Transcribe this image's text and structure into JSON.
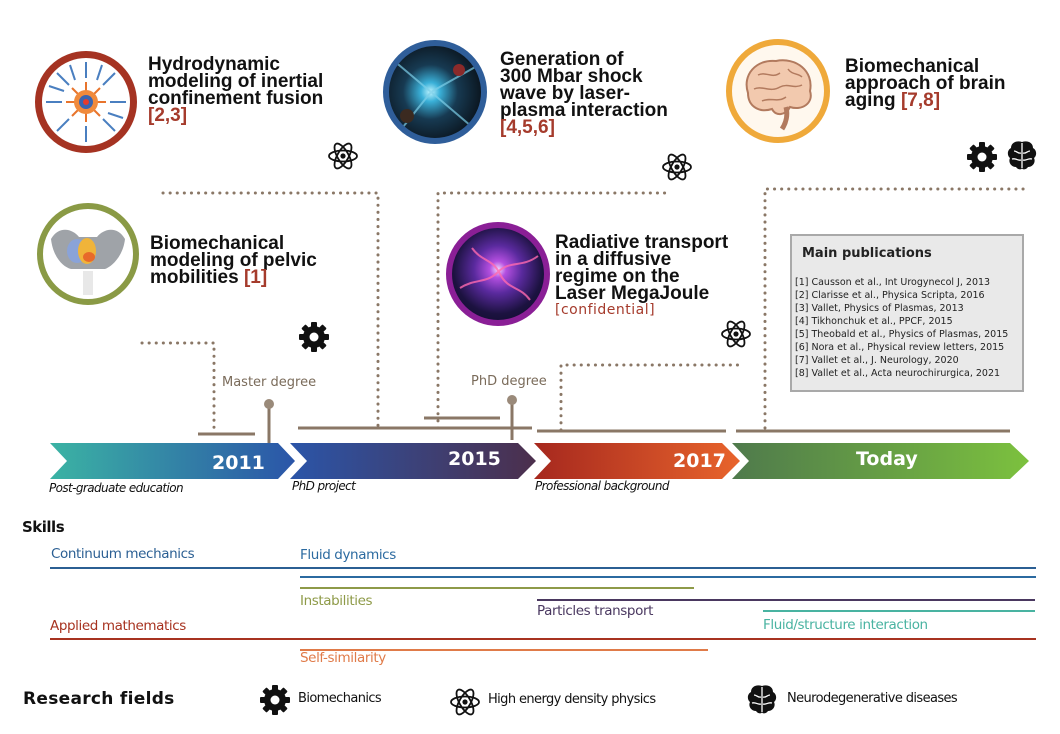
{
  "colors": {
    "ref": "#a53b2c",
    "timeline_line": "#8a7766",
    "continuum": "#2b5f93",
    "fluid": "#2b6aa0",
    "instabilities": "#8e9a48",
    "particles": "#4a3860",
    "fsi": "#49b3a1",
    "applied_math": "#a73320",
    "self_similarity": "#e07b49"
  },
  "projects": [
    {
      "title_lines": [
        "Hydrodynamic",
        "modeling of inertial",
        "confinement fusion"
      ],
      "ref": "[2,3]",
      "icon": "atom-icon",
      "ring": "#a53322"
    },
    {
      "title_lines": [
        "Generation of",
        "300 Mbar shock",
        "wave by laser-",
        "plasma interaction"
      ],
      "ref": "[4,5,6]",
      "icon": "atom-icon",
      "ring": "#2f5e9a"
    },
    {
      "title_lines": [
        "Biomechanical",
        "approach of brain",
        "aging"
      ],
      "ref": "[7,8]",
      "icons": [
        "gear-icon",
        "brain-icon"
      ],
      "ring": "#efa93a"
    },
    {
      "title_lines": [
        "Biomechanical",
        "modeling of pelvic",
        "mobilities"
      ],
      "ref": "[1]",
      "icon": "gear-icon",
      "ring": "#8a9a45"
    },
    {
      "title_lines": [
        "Radiative transport",
        "in a diffusive",
        "regime on the",
        "Laser MegaJoule"
      ],
      "ref": "[confidential]",
      "icon": "atom-icon",
      "ring": "#8a1f96"
    }
  ],
  "publications": {
    "title": "Main publications",
    "items": [
      "[1] Causson et al., Int Urogynecol J, 2013",
      "[2] Clarisse et al., Physica Scripta, 2016",
      "[3] Vallet, Physics of Plasmas, 2013",
      "[4] Tikhonchuk et al., PPCF, 2015",
      "[5] Theobald et al., Physics of Plasmas, 2015",
      "[6] Nora et al., Physical review letters, 2015",
      "[7] Vallet et al., J. Neurology, 2020",
      "[8] Vallet et al., Acta neurochirurgica, 2021"
    ]
  },
  "milestones": {
    "master": "Master degree",
    "phd": "PhD degree"
  },
  "timeline": [
    {
      "label": "2011",
      "caption": "Post-graduate education",
      "from": "#3bb3a4",
      "to": "#2b55a8"
    },
    {
      "label": "2015",
      "caption": "PhD project",
      "from": "#2b55a8",
      "to": "#4c2f4c"
    },
    {
      "label": "2017",
      "caption": "Professional background",
      "from": "#a6281e",
      "to": "#e8642c"
    },
    {
      "label": "Today",
      "caption": "",
      "from": "#4f7a4c",
      "to": "#7cc13e"
    }
  ],
  "skills": {
    "heading": "Skills",
    "items": [
      {
        "label": "Continuum mechanics"
      },
      {
        "label": "Fluid dynamics"
      },
      {
        "label": "Instabilities"
      },
      {
        "label": "Particles transport"
      },
      {
        "label": "Fluid/structure interaction"
      },
      {
        "label": "Applied mathematics"
      },
      {
        "label": "Self-similarity"
      }
    ]
  },
  "legend": {
    "heading": "Research fields",
    "items": [
      {
        "label": "Biomechanics",
        "icon": "gear-icon"
      },
      {
        "label": "High energy density physics",
        "icon": "atom-icon"
      },
      {
        "label": "Neurodegenerative diseases",
        "icon": "brain-icon"
      }
    ]
  }
}
